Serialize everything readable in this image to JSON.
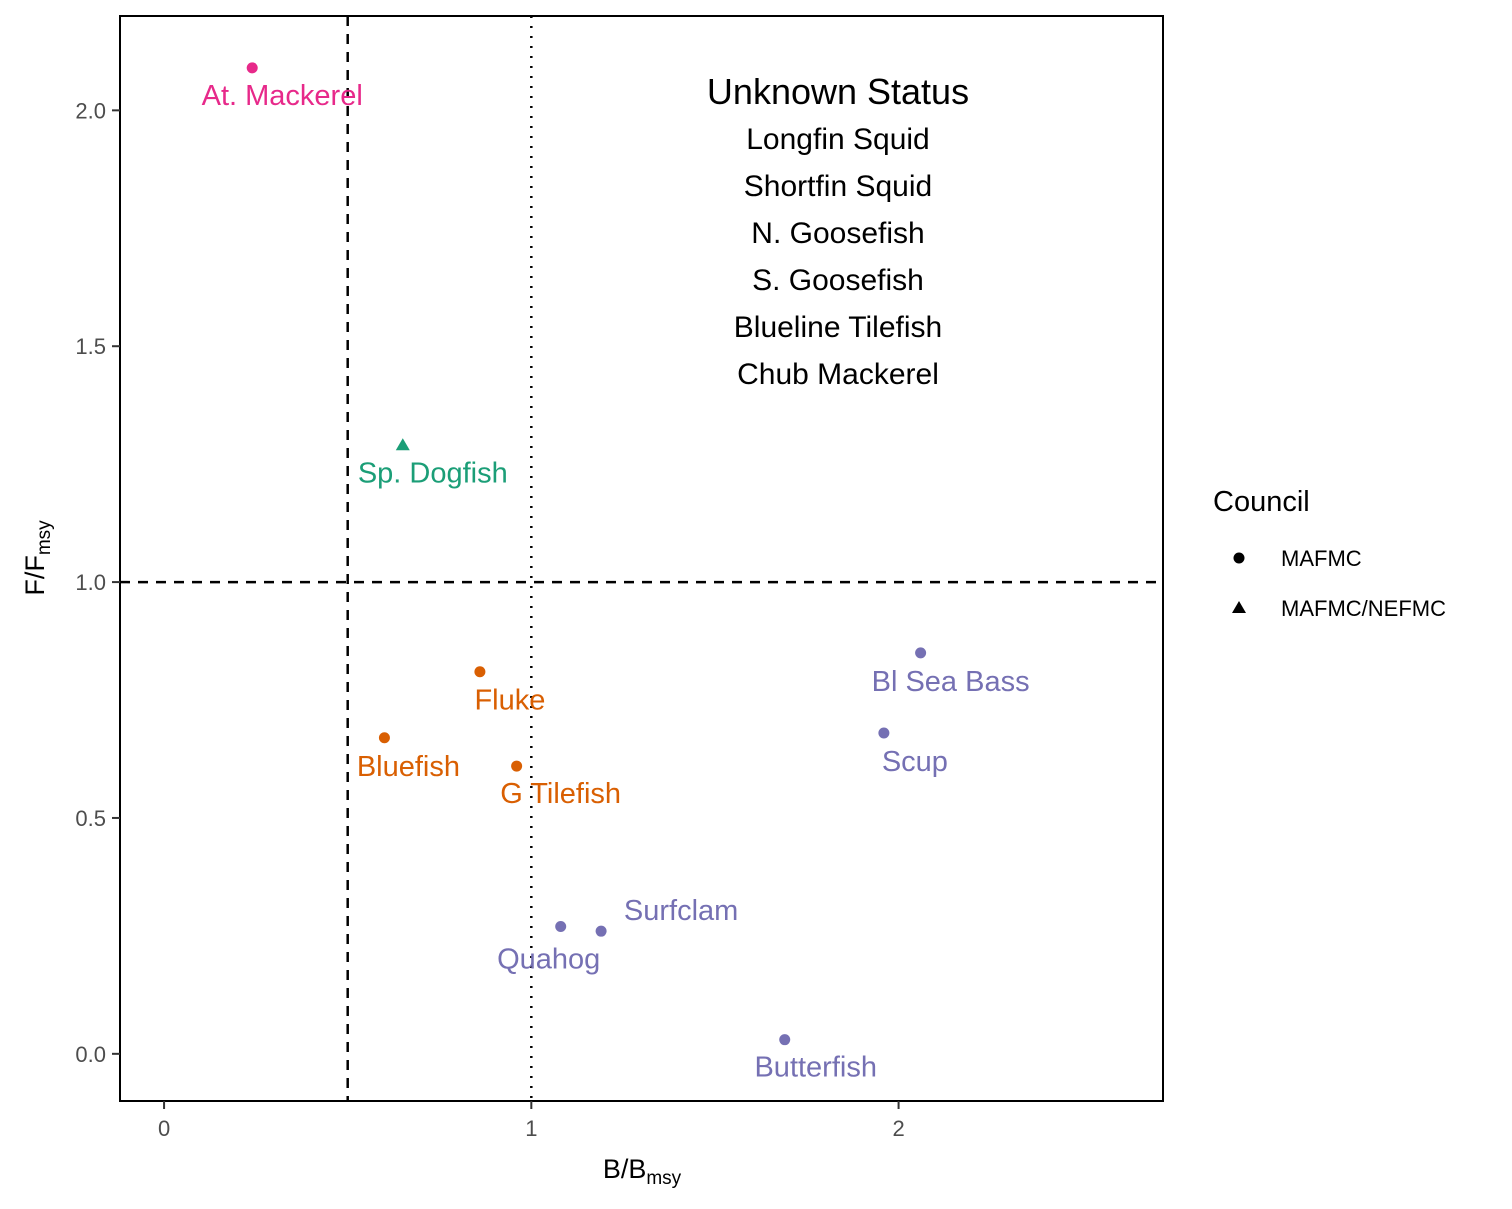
{
  "chart_data": {
    "type": "scatter",
    "xlabel": "B/B",
    "xlabel_sub": "msy",
    "ylabel": "F/F",
    "ylabel_sub": "msy",
    "xlim": [
      -0.12,
      2.72
    ],
    "ylim": [
      -0.1,
      2.2
    ],
    "x_ticks": [
      0,
      1,
      2
    ],
    "x_tick_labels": [
      "0",
      "1",
      "2"
    ],
    "y_ticks": [
      0.0,
      0.5,
      1.0,
      1.5,
      2.0
    ],
    "y_tick_labels": [
      "0.0",
      "0.5",
      "1.0",
      "1.5",
      "2.0"
    ],
    "grid": false,
    "reference_lines": [
      {
        "axis": "x",
        "value": 0.5,
        "style": "dashed"
      },
      {
        "axis": "x",
        "value": 1.0,
        "style": "dotted"
      },
      {
        "axis": "y",
        "value": 1.0,
        "style": "dashed"
      }
    ],
    "points": [
      {
        "label": "At. Mackerel",
        "x": 0.24,
        "y": 2.09,
        "council": "MAFMC",
        "color": "#E7298A"
      },
      {
        "label": "Sp. Dogfish",
        "x": 0.65,
        "y": 1.29,
        "council": "MAFMC/NEFMC",
        "color": "#1B9E77"
      },
      {
        "label": "Fluke",
        "x": 0.86,
        "y": 0.81,
        "council": "MAFMC",
        "color": "#D95F02"
      },
      {
        "label": "Bluefish",
        "x": 0.6,
        "y": 0.67,
        "council": "MAFMC",
        "color": "#D95F02"
      },
      {
        "label": "G Tilefish",
        "x": 0.96,
        "y": 0.61,
        "council": "MAFMC",
        "color": "#D95F02"
      },
      {
        "label": "Bl Sea Bass",
        "x": 2.06,
        "y": 0.85,
        "council": "MAFMC",
        "color": "#7570B3"
      },
      {
        "label": "Scup",
        "x": 1.96,
        "y": 0.68,
        "council": "MAFMC",
        "color": "#7570B3"
      },
      {
        "label": "Surfclam",
        "x": 1.19,
        "y": 0.26,
        "council": "MAFMC",
        "color": "#7570B3"
      },
      {
        "label": "Quahog",
        "x": 1.08,
        "y": 0.27,
        "council": "MAFMC",
        "color": "#7570B3"
      },
      {
        "label": "Butterfish",
        "x": 1.69,
        "y": 0.03,
        "council": "MAFMC",
        "color": "#7570B3"
      }
    ],
    "annotation": {
      "title": "Unknown Status",
      "items": [
        "Longfin Squid",
        "Shortfin Squid",
        "N. Goosefish",
        "S. Goosefish",
        "Blueline Tilefish",
        "Chub Mackerel"
      ]
    },
    "legend": {
      "title": "Council",
      "placement": "right",
      "entries": [
        {
          "label": "MAFMC",
          "shape": "circle"
        },
        {
          "label": "MAFMC/NEFMC",
          "shape": "triangle"
        }
      ]
    }
  }
}
